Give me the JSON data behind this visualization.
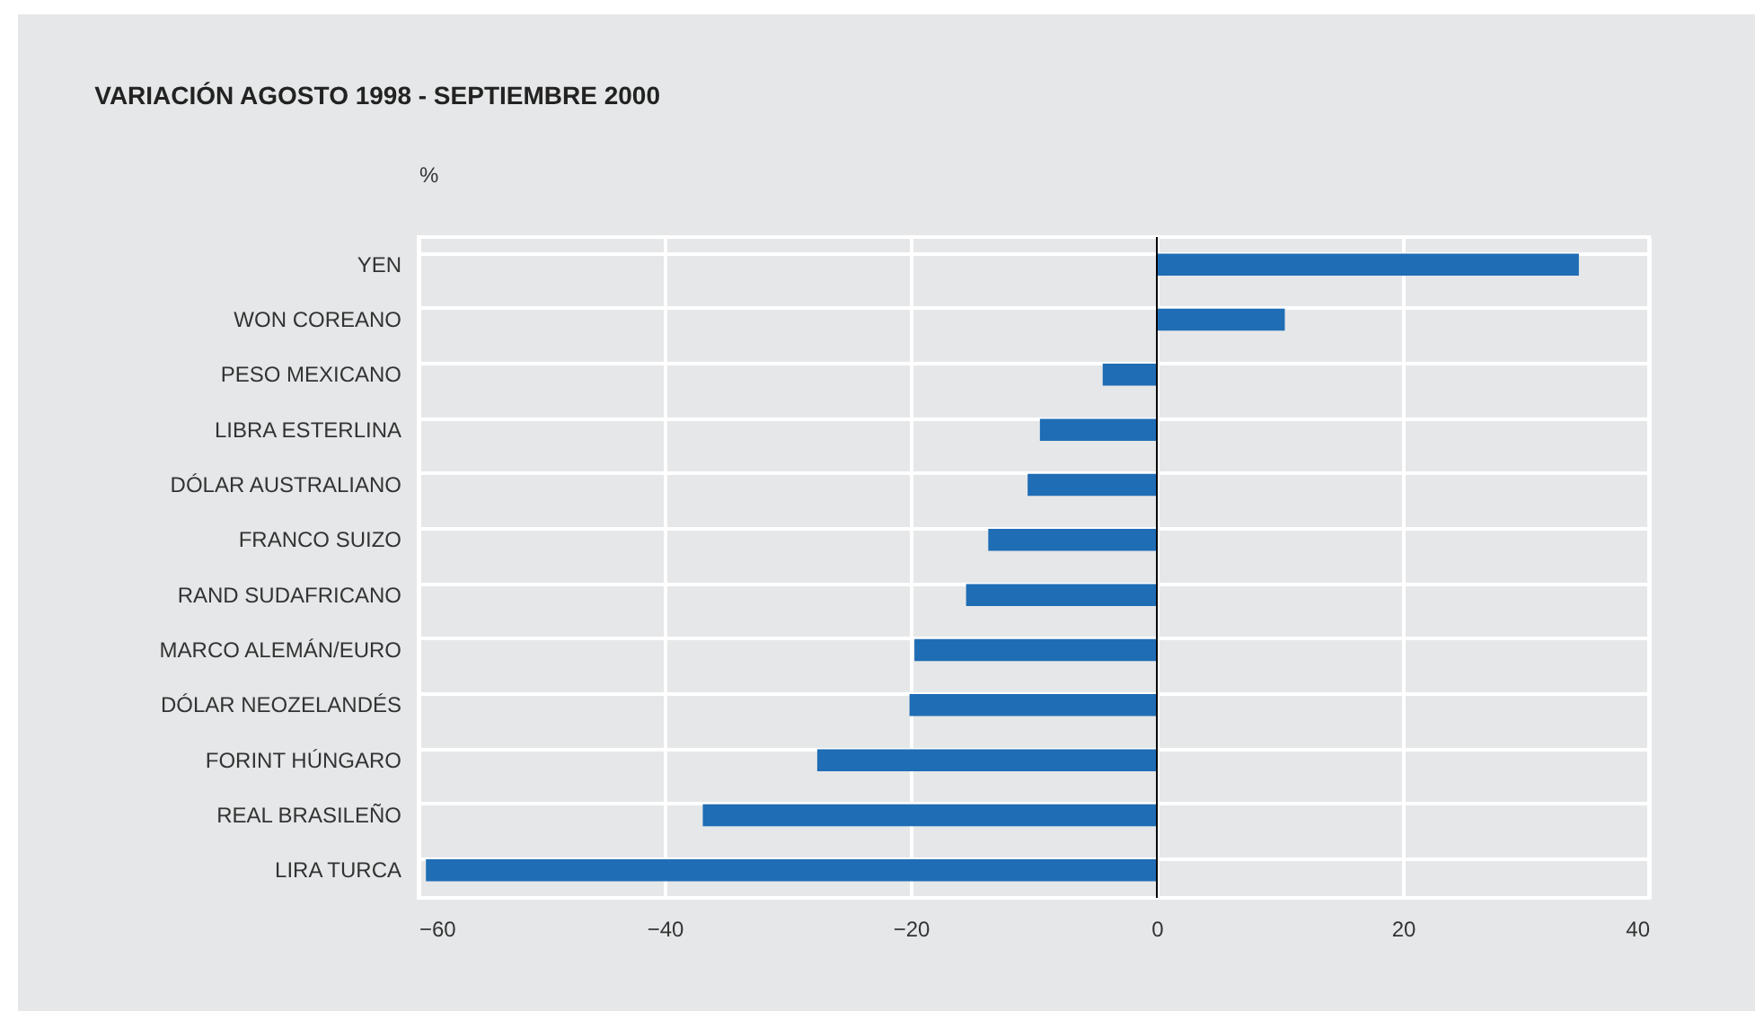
{
  "chart_data": {
    "type": "bar",
    "orientation": "horizontal",
    "title": "VARIACIÓN AGOSTO 1998 - SEPTIEMBRE 2000",
    "ylabel": "%",
    "categories": [
      "YEN",
      "WON COREANO",
      "PESO MEXICANO",
      "LIBRA ESTERLINA",
      "DÓLAR AUSTRALIANO",
      "FRANCO SUIZO",
      "RAND SUDAFRICANO",
      "MARCO ALEMÁN/EURO",
      "DÓLAR NEOZELANDÉS",
      "FORINT HÚNGARO",
      "REAL BRASILEÑO",
      "LIRA TURCA"
    ],
    "values": [
      34.3,
      10.4,
      -4.4,
      -9.5,
      -10.5,
      -13.7,
      -15.5,
      -19.7,
      -20.1,
      -27.6,
      -36.9,
      -59.4
    ],
    "color": "#1f6db5",
    "xlim": [
      -60,
      40
    ],
    "xticks": [
      -60,
      -40,
      -20,
      0,
      20,
      40
    ],
    "grid": true,
    "ref_lines": [
      {
        "axis": "x",
        "value": 0,
        "color": "#000000"
      }
    ]
  }
}
